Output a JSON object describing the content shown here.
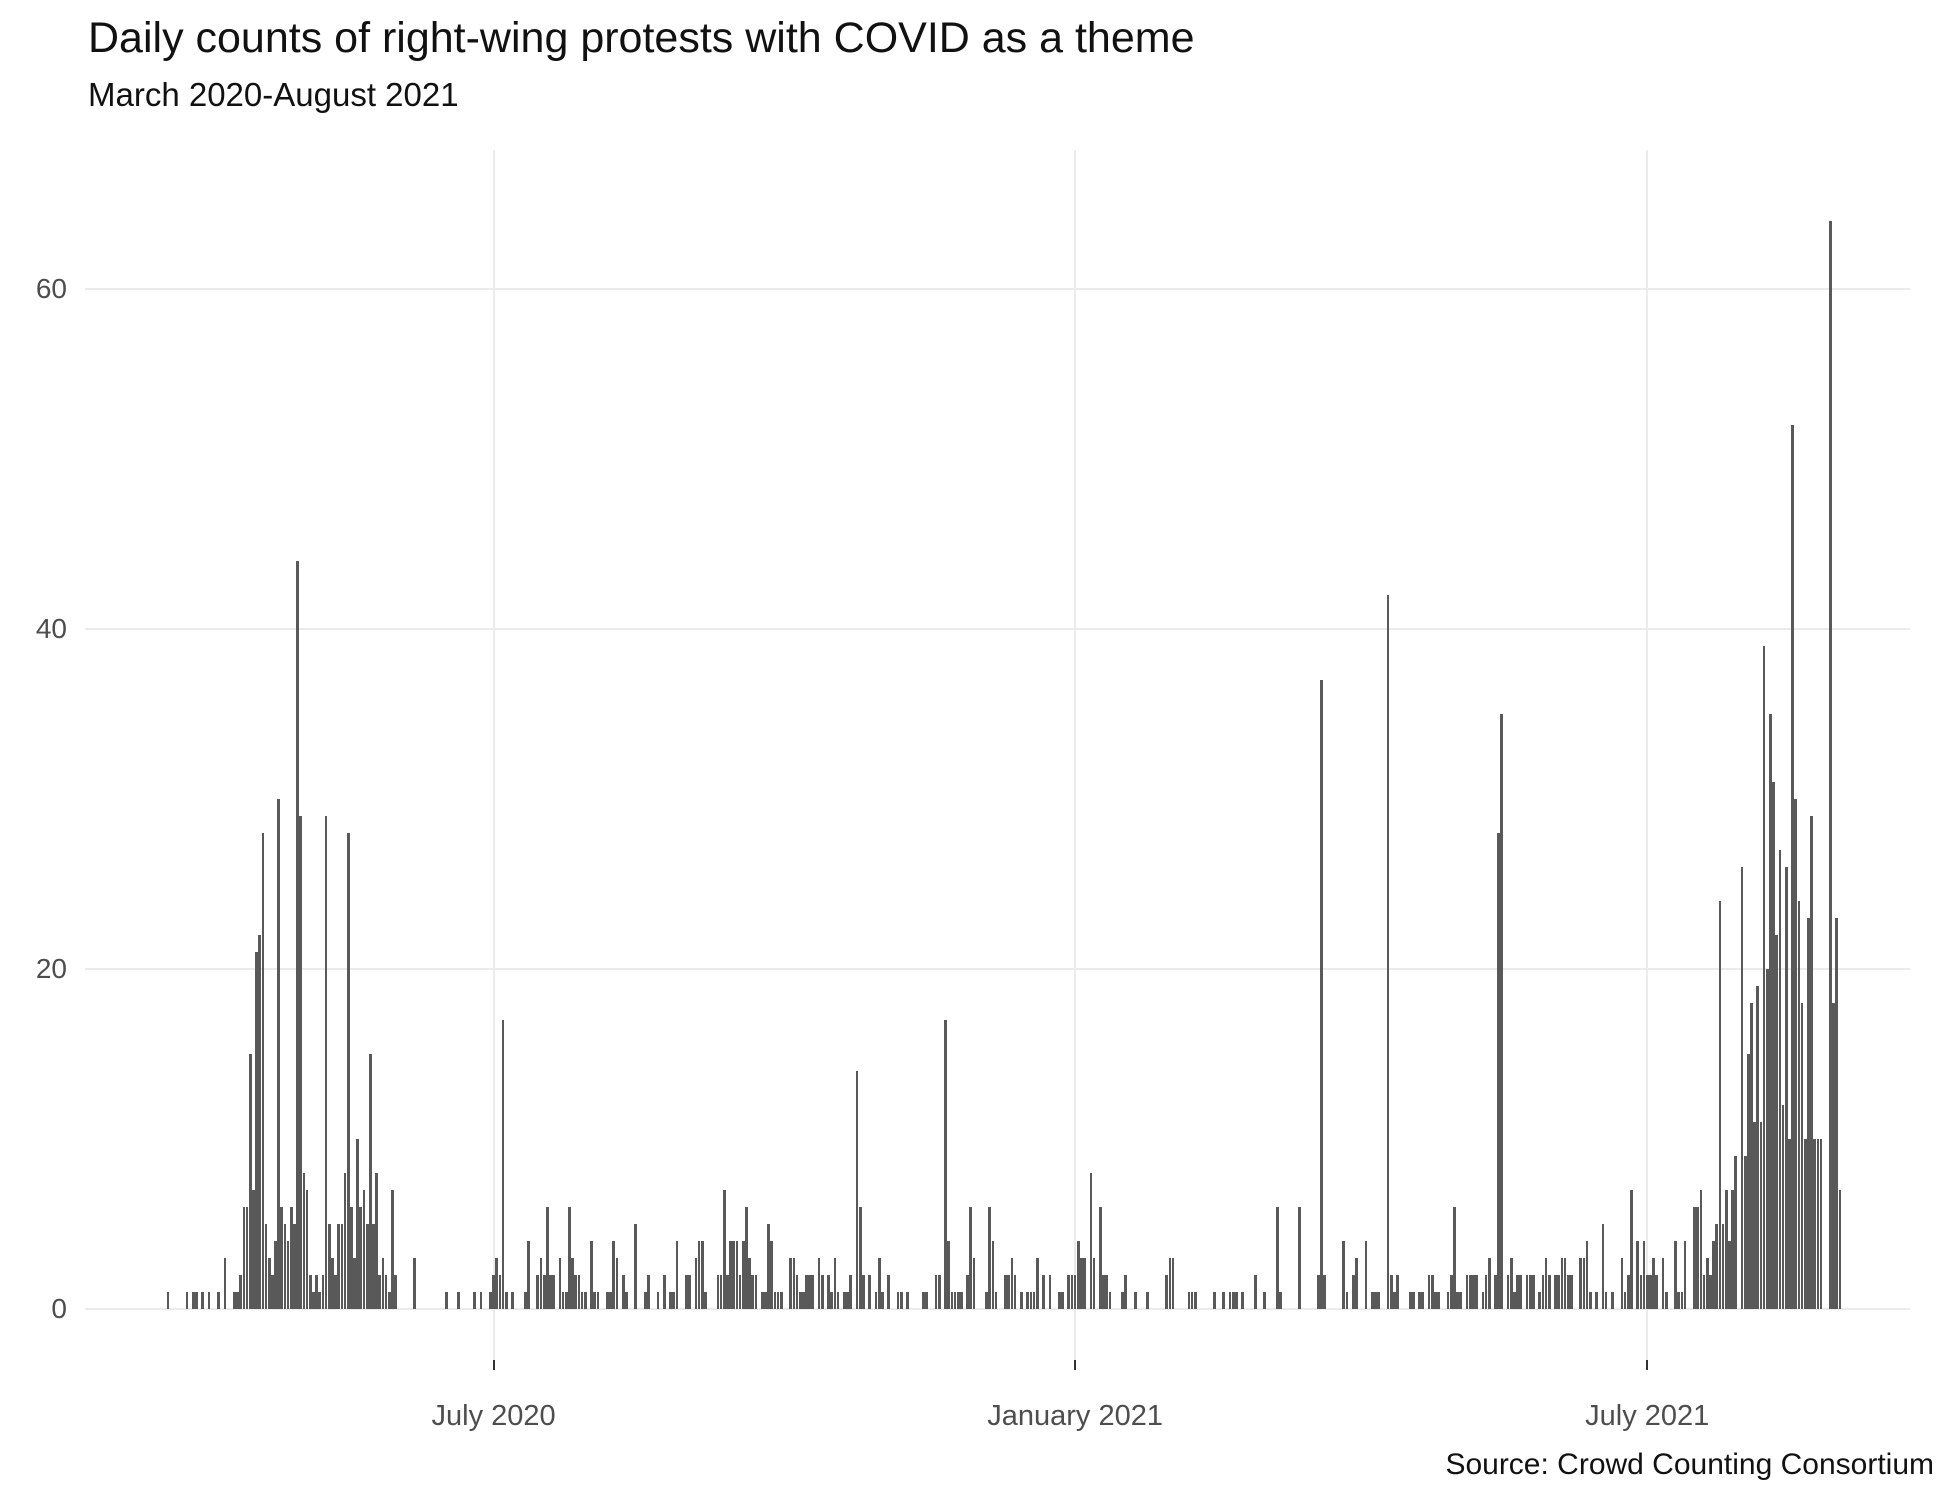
{
  "header": {
    "title": "Daily counts of right-wing protests with COVID as a theme",
    "subtitle": "March 2020-August 2021"
  },
  "caption": {
    "source": "Source: Crowd Counting Consortium"
  },
  "chart_data": {
    "type": "bar",
    "title": "Daily counts of right-wing protests with COVID as a theme",
    "subtitle": "March 2020-August 2021",
    "source": "Source: Crowd Counting Consortium",
    "unit": "protest events per day",
    "start_date": "2020-03-01",
    "end_date": "2021-08-31",
    "bar_color": "#595959",
    "gridline_color": "#ebebeb",
    "axis_text_color": "#4d4d4d",
    "grid": "major only, light gray on white",
    "legend": "none",
    "x_axis": {
      "tick_labels": [
        "July 2020",
        "January 2021",
        "July 2021"
      ],
      "tick_dates": [
        "2020-07-01",
        "2021-01-01",
        "2021-07-01"
      ]
    },
    "y_axis": {
      "tick_labels": [
        "0",
        "20",
        "40",
        "60"
      ],
      "ticks": [
        0,
        20,
        40,
        60
      ],
      "range": [
        0,
        66
      ]
    },
    "notable_peaks": [
      {
        "date": "2020-04-30",
        "value": 44
      },
      {
        "date": "2020-07-04",
        "value": 17
      },
      {
        "date": "2020-10-24",
        "value": 14
      },
      {
        "date": "2020-11-21",
        "value": 17
      },
      {
        "date": "2021-03-20",
        "value": 37
      },
      {
        "date": "2021-04-10",
        "value": 42
      },
      {
        "date": "2021-05-16",
        "value": 35
      },
      {
        "date": "2021-08-07",
        "value": 39
      },
      {
        "date": "2021-08-16",
        "value": 52
      },
      {
        "date": "2021-08-28",
        "value": 64
      }
    ],
    "values": [
      0,
      0,
      0,
      0,
      0,
      0,
      0,
      0,
      0,
      0,
      0,
      0,
      0,
      0,
      0,
      0,
      0,
      0,
      0,
      1,
      0,
      0,
      0,
      0,
      0,
      1,
      0,
      1,
      1,
      0,
      1,
      0,
      1,
      0,
      0,
      1,
      0,
      3,
      0,
      0,
      1,
      1,
      2,
      6,
      6,
      15,
      7,
      21,
      22,
      28,
      5,
      3,
      2,
      4,
      30,
      6,
      5,
      4,
      6,
      5,
      44,
      29,
      8,
      7,
      2,
      1,
      2,
      1,
      2,
      29,
      5,
      3,
      2,
      5,
      5,
      8,
      28,
      6,
      3,
      10,
      6,
      7,
      5,
      15,
      5,
      8,
      2,
      3,
      2,
      1,
      7,
      2,
      0,
      0,
      0,
      0,
      0,
      3,
      0,
      0,
      0,
      0,
      0,
      0,
      0,
      0,
      0,
      1,
      0,
      0,
      0,
      1,
      0,
      0,
      0,
      0,
      1,
      0,
      1,
      0,
      0,
      1,
      2,
      3,
      2,
      17,
      1,
      0,
      1,
      0,
      0,
      0,
      1,
      4,
      0,
      0,
      2,
      3,
      2,
      6,
      2,
      2,
      0,
      3,
      1,
      1,
      6,
      3,
      2,
      2,
      1,
      1,
      0,
      4,
      1,
      1,
      0,
      0,
      1,
      1,
      4,
      3,
      0,
      2,
      1,
      0,
      0,
      5,
      0,
      0,
      1,
      2,
      0,
      0,
      1,
      0,
      2,
      0,
      1,
      1,
      4,
      0,
      0,
      2,
      2,
      0,
      3,
      4,
      4,
      1,
      0,
      0,
      0,
      2,
      2,
      7,
      2,
      4,
      4,
      4,
      2,
      4,
      6,
      3,
      2,
      2,
      0,
      1,
      1,
      5,
      4,
      1,
      1,
      1,
      0,
      0,
      3,
      3,
      2,
      1,
      1,
      2,
      2,
      2,
      0,
      3,
      2,
      0,
      2,
      1,
      3,
      1,
      0,
      1,
      1,
      2,
      0,
      14,
      6,
      2,
      0,
      2,
      0,
      1,
      3,
      1,
      0,
      2,
      0,
      0,
      1,
      1,
      0,
      1,
      0,
      0,
      0,
      0,
      1,
      1,
      0,
      0,
      2,
      2,
      0,
      17,
      4,
      1,
      1,
      1,
      1,
      0,
      2,
      6,
      3,
      0,
      0,
      0,
      1,
      6,
      4,
      1,
      0,
      0,
      2,
      2,
      3,
      2,
      0,
      1,
      0,
      1,
      1,
      1,
      3,
      0,
      2,
      0,
      2,
      0,
      0,
      1,
      1,
      0,
      2,
      2,
      2,
      4,
      3,
      3,
      0,
      8,
      3,
      0,
      6,
      2,
      2,
      1,
      0,
      0,
      0,
      1,
      2,
      0,
      0,
      1,
      0,
      0,
      0,
      1,
      0,
      0,
      0,
      0,
      0,
      2,
      3,
      3,
      0,
      0,
      0,
      0,
      1,
      1,
      1,
      0,
      0,
      0,
      0,
      0,
      1,
      0,
      0,
      1,
      0,
      1,
      1,
      1,
      0,
      1,
      0,
      0,
      0,
      2,
      0,
      0,
      1,
      0,
      0,
      0,
      6,
      1,
      0,
      0,
      0,
      0,
      0,
      6,
      0,
      0,
      0,
      0,
      0,
      2,
      37,
      2,
      0,
      0,
      0,
      0,
      0,
      4,
      1,
      0,
      2,
      3,
      0,
      0,
      4,
      0,
      1,
      1,
      1,
      0,
      0,
      42,
      2,
      1,
      2,
      0,
      0,
      0,
      1,
      1,
      0,
      1,
      1,
      0,
      2,
      2,
      1,
      1,
      0,
      0,
      1,
      2,
      6,
      1,
      1,
      0,
      2,
      2,
      2,
      2,
      0,
      1,
      2,
      3,
      0,
      2,
      28,
      35,
      0,
      2,
      3,
      1,
      2,
      2,
      0,
      2,
      2,
      2,
      0,
      1,
      2,
      3,
      2,
      0,
      2,
      2,
      3,
      3,
      2,
      2,
      0,
      0,
      3,
      3,
      4,
      1,
      0,
      1,
      0,
      5,
      1,
      0,
      1,
      0,
      0,
      3,
      1,
      2,
      7,
      0,
      4,
      2,
      4,
      2,
      2,
      3,
      2,
      0,
      3,
      1,
      0,
      0,
      4,
      1,
      1,
      4,
      0,
      0,
      6,
      6,
      7,
      2,
      3,
      2,
      4,
      5,
      24,
      5,
      7,
      4,
      7,
      9,
      0,
      26,
      9,
      15,
      18,
      11,
      19,
      11,
      39,
      20,
      35,
      31,
      22,
      27,
      12,
      26,
      10,
      52,
      30,
      24,
      18,
      10,
      23,
      29,
      10,
      10,
      10,
      0,
      0,
      64,
      18,
      23,
      7
    ]
  }
}
